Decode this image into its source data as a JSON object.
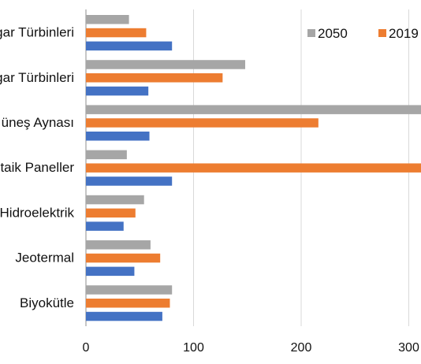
{
  "chart_data": {
    "type": "bar",
    "orientation": "horizontal",
    "categories": [
      "gar Türbinleri",
      "gar Türbinleri",
      "üneş Aynası",
      "taik Paneller",
      "Hidroelektrik",
      "Jeotermal",
      "Biyokütle"
    ],
    "series": [
      {
        "name": "2050",
        "color": "#a6a6a6",
        "values": [
          40,
          148,
          320,
          38,
          54,
          60,
          80
        ]
      },
      {
        "name": "2019",
        "color": "#ed7d31",
        "values": [
          56,
          127,
          216,
          320,
          46,
          69,
          78
        ]
      },
      {
        "name": "",
        "color": "#4472c4",
        "values": [
          80,
          58,
          59,
          80,
          35,
          45,
          71
        ]
      }
    ],
    "xticks": [
      "0",
      "100",
      "200",
      "300"
    ],
    "xlim": [
      0,
      320
    ],
    "grid": true,
    "legend_position": "top-right"
  }
}
